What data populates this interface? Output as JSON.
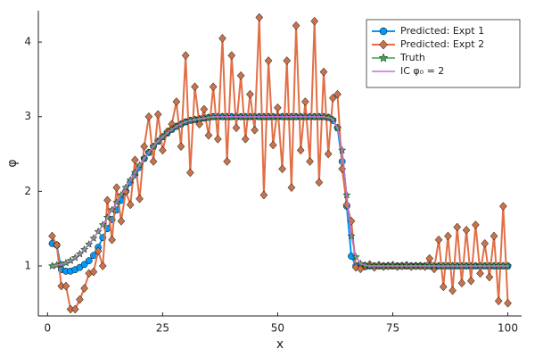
{
  "chart_data": {
    "type": "line",
    "x_label": "x",
    "y_label": "φ",
    "xlim": [
      -2,
      103
    ],
    "ylim": [
      0.33,
      4.42
    ],
    "xticks": [
      0,
      25,
      50,
      75,
      100
    ],
    "yticks": [
      1,
      2,
      3,
      4
    ],
    "grid": false,
    "legend_position": "top right",
    "x": [
      1,
      2,
      3,
      4,
      5,
      6,
      7,
      8,
      9,
      10,
      11,
      12,
      13,
      14,
      15,
      16,
      17,
      18,
      19,
      20,
      21,
      22,
      23,
      24,
      25,
      26,
      27,
      28,
      29,
      30,
      31,
      32,
      33,
      34,
      35,
      36,
      37,
      38,
      39,
      40,
      41,
      42,
      43,
      44,
      45,
      46,
      47,
      48,
      49,
      50,
      51,
      52,
      53,
      54,
      55,
      56,
      57,
      58,
      59,
      60,
      61,
      62,
      63,
      64,
      65,
      66,
      67,
      68,
      69,
      70,
      71,
      72,
      73,
      74,
      75,
      76,
      77,
      78,
      79,
      80,
      81,
      82,
      83,
      84,
      85,
      86,
      87,
      88,
      89,
      90,
      91,
      92,
      93,
      94,
      95,
      96,
      97,
      98,
      99,
      100
    ],
    "series": [
      {
        "name": "Predicted: Expt 1",
        "color": "#009afa",
        "marker": "circle",
        "line_width": 2,
        "values": [
          1.3,
          1.28,
          0.95,
          0.93,
          0.93,
          0.95,
          0.98,
          1.02,
          1.07,
          1.14,
          1.25,
          1.38,
          1.5,
          1.62,
          1.75,
          1.88,
          2.0,
          2.12,
          2.22,
          2.32,
          2.44,
          2.52,
          2.6,
          2.67,
          2.73,
          2.78,
          2.83,
          2.87,
          2.9,
          2.93,
          2.95,
          2.96,
          2.97,
          2.98,
          2.99,
          3,
          3,
          3,
          3,
          3,
          3,
          3,
          3,
          3,
          3,
          3,
          3,
          3,
          3,
          3,
          3,
          3,
          3,
          3,
          3,
          3,
          3,
          3,
          3,
          3,
          2.99,
          2.95,
          2.85,
          2.4,
          1.8,
          1.13,
          1.0,
          0.98,
          0.99,
          1,
          1,
          1,
          1,
          1,
          1,
          1,
          1,
          1,
          1,
          1,
          1,
          1,
          1,
          1,
          1,
          1,
          1,
          1,
          1,
          1,
          1,
          1,
          1,
          1,
          1,
          1,
          1,
          1,
          1,
          1
        ]
      },
      {
        "name": "Predicted: Expt 2",
        "color": "#e26f46",
        "marker_color": "#c8734b",
        "marker": "diamond",
        "line_width": 2,
        "values": [
          1.4,
          1.28,
          0.73,
          0.73,
          0.42,
          0.42,
          0.55,
          0.7,
          0.9,
          0.92,
          1.2,
          1.0,
          1.88,
          1.35,
          2.05,
          1.6,
          2.0,
          1.82,
          2.42,
          1.9,
          2.6,
          3.0,
          2.4,
          3.03,
          2.55,
          2.8,
          2.9,
          3.2,
          2.6,
          3.82,
          2.25,
          3.4,
          2.9,
          3.1,
          2.75,
          3.4,
          2.7,
          4.05,
          2.4,
          3.82,
          2.85,
          3.55,
          2.7,
          3.3,
          2.82,
          4.33,
          1.95,
          3.75,
          2.62,
          3.12,
          2.3,
          3.75,
          2.05,
          4.22,
          2.55,
          3.2,
          2.4,
          4.28,
          2.12,
          3.6,
          2.5,
          3.25,
          3.3,
          2.3,
          1.82,
          1.6,
          0.98,
          0.96,
          1.0,
          1.02,
          0.98,
          1.01,
          0.99,
          1.0,
          1.01,
          0.99,
          1.0,
          1.01,
          0.99,
          1.0,
          1.0,
          0.99,
          1.1,
          0.96,
          1.35,
          0.72,
          1.4,
          0.67,
          1.52,
          0.77,
          1.48,
          0.8,
          1.55,
          0.9,
          1.3,
          0.85,
          1.4,
          0.53,
          1.8,
          0.5
        ]
      },
      {
        "name": "Truth",
        "color": "#3da44d",
        "marker": "star",
        "line_width": 1.5,
        "values": [
          1,
          1.01,
          1.02,
          1.04,
          1.07,
          1.11,
          1.16,
          1.22,
          1.29,
          1.37,
          1.46,
          1.55,
          1.65,
          1.75,
          1.85,
          1.95,
          2.05,
          2.15,
          2.25,
          2.35,
          2.44,
          2.52,
          2.6,
          2.67,
          2.73,
          2.78,
          2.83,
          2.87,
          2.9,
          2.93,
          2.95,
          2.96,
          2.97,
          2.98,
          2.99,
          3,
          3,
          3,
          3,
          3,
          3,
          3,
          3,
          3,
          3,
          3,
          3,
          3,
          3,
          3,
          3,
          3,
          3,
          3,
          3,
          3,
          3,
          3,
          3,
          3,
          2.99,
          2.96,
          2.85,
          2.55,
          1.95,
          1.4,
          1.12,
          1.03,
          1.01,
          1,
          1,
          1,
          1,
          1,
          1,
          1,
          1,
          1,
          1,
          1,
          1,
          1,
          1,
          1,
          1,
          1,
          1,
          1,
          1,
          1,
          1,
          1,
          1,
          1,
          1,
          1,
          1,
          1,
          1,
          1
        ]
      },
      {
        "name": "IC φ₀ = 2",
        "color": "#c271d2",
        "marker": "none",
        "line_width": 1.5,
        "values": [
          1,
          1.01,
          1.02,
          1.04,
          1.07,
          1.11,
          1.16,
          1.22,
          1.29,
          1.37,
          1.46,
          1.55,
          1.65,
          1.75,
          1.85,
          1.95,
          2.05,
          2.15,
          2.25,
          2.35,
          2.44,
          2.52,
          2.6,
          2.67,
          2.73,
          2.78,
          2.83,
          2.87,
          2.9,
          2.93,
          2.95,
          2.96,
          2.97,
          2.98,
          2.99,
          3,
          3,
          3,
          3,
          3,
          3,
          3,
          3,
          3,
          3,
          3,
          3,
          3,
          3,
          3,
          3,
          3,
          3,
          3,
          3,
          3,
          3,
          3,
          3,
          3,
          2.99,
          2.96,
          2.85,
          2.55,
          1.95,
          1.4,
          1.12,
          1.03,
          1.01,
          1,
          1,
          1,
          1,
          1,
          1,
          1,
          1,
          1,
          1,
          1,
          1,
          1,
          1,
          1,
          1,
          1,
          1,
          1,
          1,
          1,
          1,
          1,
          1,
          1,
          1,
          1,
          1,
          1,
          1,
          1
        ]
      }
    ]
  }
}
